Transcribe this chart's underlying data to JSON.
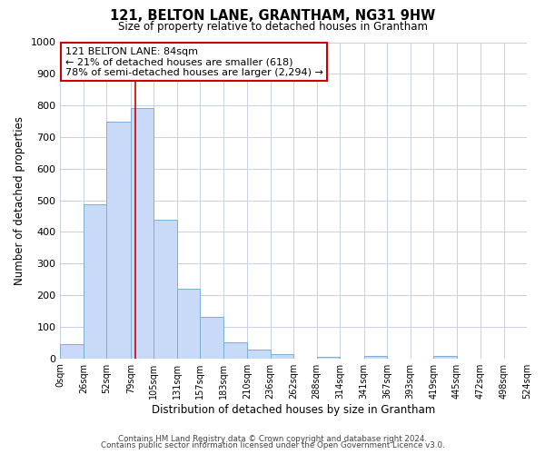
{
  "title": "121, BELTON LANE, GRANTHAM, NG31 9HW",
  "subtitle": "Size of property relative to detached houses in Grantham",
  "xlabel": "Distribution of detached houses by size in Grantham",
  "ylabel": "Number of detached properties",
  "bar_color": "#c9daf8",
  "bar_edge_color": "#7bafd4",
  "background_color": "#ffffff",
  "grid_color": "#c8d0e8",
  "bin_edges": [
    0,
    26,
    52,
    79,
    105,
    131,
    157,
    183,
    210,
    236,
    262,
    288,
    314,
    341,
    367,
    393,
    419,
    445,
    472,
    498,
    524
  ],
  "bin_labels": [
    "0sqm",
    "26sqm",
    "52sqm",
    "79sqm",
    "105sqm",
    "131sqm",
    "157sqm",
    "183sqm",
    "210sqm",
    "236sqm",
    "262sqm",
    "288sqm",
    "314sqm",
    "341sqm",
    "367sqm",
    "393sqm",
    "419sqm",
    "445sqm",
    "472sqm",
    "498sqm",
    "524sqm"
  ],
  "counts": [
    45,
    488,
    750,
    793,
    438,
    220,
    130,
    52,
    28,
    14,
    0,
    6,
    0,
    7,
    0,
    0,
    8,
    0,
    0,
    0
  ],
  "vline_x": 84,
  "vline_color": "#cc0000",
  "annotation_line1": "121 BELTON LANE: 84sqm",
  "annotation_line2": "← 21% of detached houses are smaller (618)",
  "annotation_line3": "78% of semi-detached houses are larger (2,294) →",
  "annotation_box_edge": "#cc0000",
  "ylim": [
    0,
    1000
  ],
  "yticks": [
    0,
    100,
    200,
    300,
    400,
    500,
    600,
    700,
    800,
    900,
    1000
  ],
  "footer1": "Contains HM Land Registry data © Crown copyright and database right 2024.",
  "footer2": "Contains public sector information licensed under the Open Government Licence v3.0."
}
